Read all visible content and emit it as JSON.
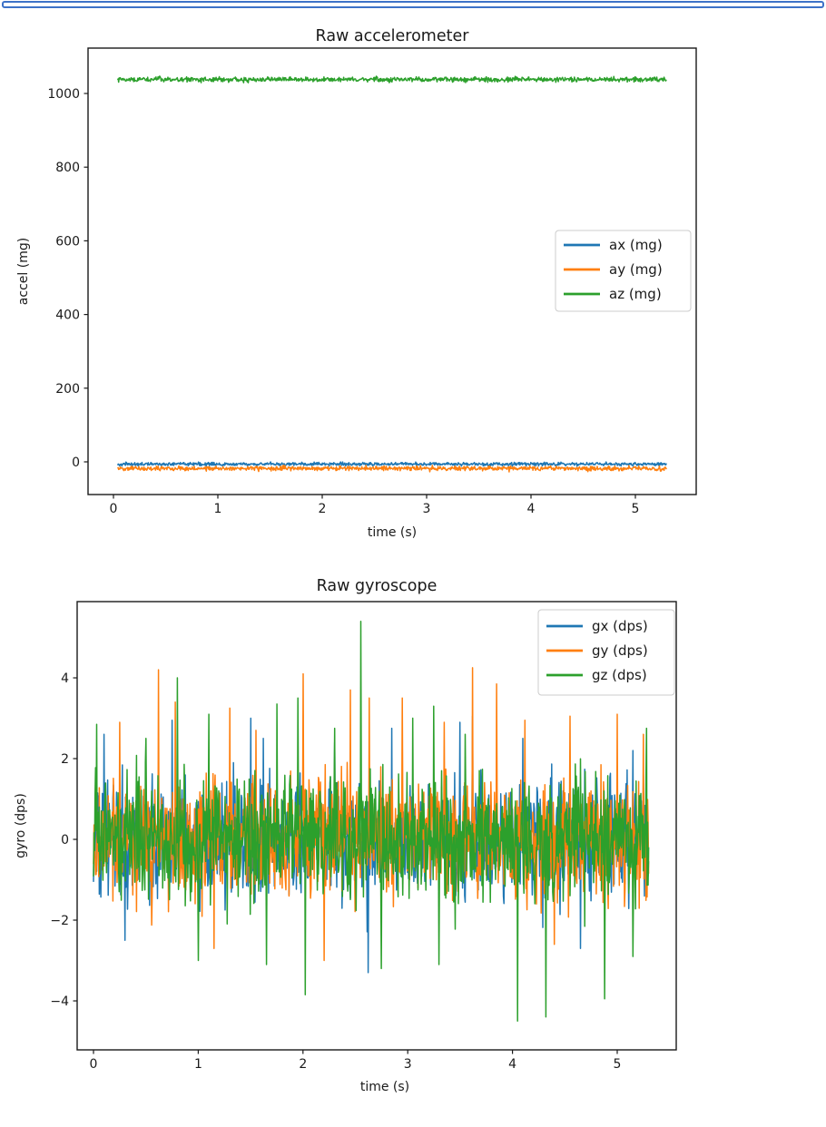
{
  "page": {
    "background": "#ffffff",
    "top_strip_border_color": "#3d72c8"
  },
  "chart_data": [
    {
      "type": "line",
      "title": "Raw accelerometer",
      "xlabel": "time (s)",
      "ylabel": "accel (mg)",
      "xlim": [
        -0.2435,
        5.5826
      ],
      "ylim": [
        -88.7,
        1123.2
      ],
      "xticks": {
        "values": [
          0,
          1,
          2,
          3,
          4,
          5
        ],
        "labels": [
          "0",
          "1",
          "2",
          "3",
          "4",
          "5"
        ]
      },
      "yticks": {
        "values": [
          0,
          200,
          400,
          600,
          800,
          1000
        ],
        "labels": [
          "0",
          "200",
          "400",
          "600",
          "800",
          "1000"
        ]
      },
      "grid": false,
      "legend_loc": "center right",
      "x_range": [
        0.04,
        5.3
      ],
      "n_points": 1060,
      "series": [
        {
          "name": "ax (mg)",
          "color": "#1f77b4",
          "mean": -6,
          "noise_amp": 4,
          "seed": 101,
          "spikes": []
        },
        {
          "name": "ay (mg)",
          "color": "#ff7f0e",
          "mean": -18,
          "noise_amp": 5.5,
          "seed": 202,
          "spikes": []
        },
        {
          "name": "az (mg)",
          "color": "#2ca02c",
          "mean": 1038,
          "noise_amp": 5.5,
          "seed": 303,
          "spikes": []
        }
      ]
    },
    {
      "type": "line",
      "title": "Raw gyroscope",
      "xlabel": "time (s)",
      "ylabel": "gyro (dps)",
      "xlim": [
        -0.156,
        5.5633
      ],
      "ylim": [
        -5.213,
        5.888
      ],
      "xticks": {
        "values": [
          0,
          1,
          2,
          3,
          4,
          5
        ],
        "labels": [
          "0",
          "1",
          "2",
          "3",
          "4",
          "5"
        ]
      },
      "yticks": {
        "values": [
          -4,
          -2,
          0,
          2,
          4
        ],
        "labels": [
          "−4",
          "−2",
          "0",
          "2",
          "4"
        ]
      },
      "grid": false,
      "legend_loc": "upper right",
      "x_range": [
        0.0,
        5.3
      ],
      "n_points": 1060,
      "series": [
        {
          "name": "gx (dps)",
          "color": "#1f77b4",
          "mean": 0,
          "noise_amp": 1.2,
          "seed": 11,
          "spikes": [
            [
              0.1,
              2.6
            ],
            [
              0.3,
              -2.5
            ],
            [
              0.75,
              2.95
            ],
            [
              1.5,
              3.0
            ],
            [
              1.62,
              2.5
            ],
            [
              2.3,
              2.4
            ],
            [
              2.62,
              -3.3
            ],
            [
              2.85,
              2.75
            ],
            [
              3.5,
              2.9
            ],
            [
              3.62,
              3.05
            ],
            [
              4.1,
              2.5
            ],
            [
              4.65,
              -2.7
            ],
            [
              5.15,
              2.2
            ]
          ]
        },
        {
          "name": "gy (dps)",
          "color": "#ff7f0e",
          "mean": 0,
          "noise_amp": 1.3,
          "seed": 22,
          "spikes": [
            [
              0.25,
              2.9
            ],
            [
              0.62,
              4.2
            ],
            [
              0.78,
              3.4
            ],
            [
              1.15,
              -2.7
            ],
            [
              1.3,
              3.25
            ],
            [
              1.55,
              2.7
            ],
            [
              2.0,
              4.1
            ],
            [
              2.2,
              -3.0
            ],
            [
              2.45,
              3.7
            ],
            [
              2.63,
              3.5
            ],
            [
              2.95,
              3.5
            ],
            [
              3.35,
              2.9
            ],
            [
              3.62,
              4.25
            ],
            [
              3.85,
              3.85
            ],
            [
              4.12,
              2.95
            ],
            [
              4.4,
              -2.6
            ],
            [
              4.55,
              3.05
            ],
            [
              5.0,
              3.1
            ],
            [
              5.25,
              2.6
            ]
          ]
        },
        {
          "name": "gz (dps)",
          "color": "#2ca02c",
          "mean": 0,
          "noise_amp": 1.3,
          "seed": 33,
          "spikes": [
            [
              0.03,
              2.85
            ],
            [
              0.5,
              2.5
            ],
            [
              0.8,
              4.0
            ],
            [
              1.0,
              -3.0
            ],
            [
              1.1,
              3.1
            ],
            [
              1.65,
              -3.1
            ],
            [
              1.75,
              3.35
            ],
            [
              1.95,
              3.5
            ],
            [
              2.02,
              -3.85
            ],
            [
              2.3,
              2.75
            ],
            [
              2.55,
              5.4
            ],
            [
              2.75,
              -3.2
            ],
            [
              3.05,
              3.0
            ],
            [
              3.25,
              3.3
            ],
            [
              3.3,
              -3.1
            ],
            [
              3.55,
              2.6
            ],
            [
              4.05,
              -4.5
            ],
            [
              4.32,
              -4.4
            ],
            [
              4.88,
              -3.95
            ],
            [
              5.15,
              -2.9
            ],
            [
              5.28,
              2.75
            ]
          ]
        }
      ]
    }
  ]
}
